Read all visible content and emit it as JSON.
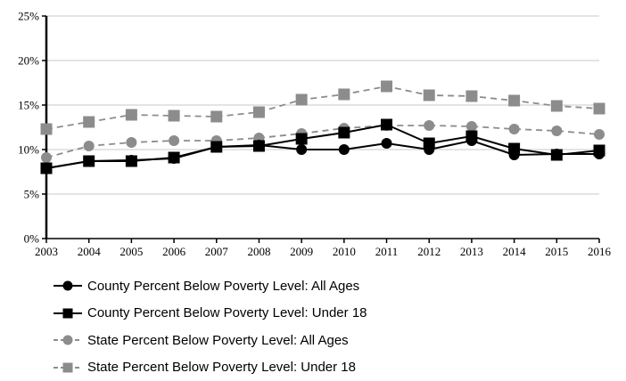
{
  "chart_data": {
    "type": "line",
    "x": [
      "2003",
      "2004",
      "2005",
      "2006",
      "2007",
      "2008",
      "2009",
      "2010",
      "2011",
      "2012",
      "2013",
      "2014",
      "2015",
      "2016"
    ],
    "ylim": [
      0,
      25
    ],
    "yticks": [
      "0%",
      "5%",
      "10%",
      "15%",
      "20%",
      "25%"
    ],
    "grid": true,
    "legend_position": "bottom",
    "series": [
      {
        "name": "County Percent Below Poverty Level: All Ages",
        "color": "#000000",
        "marker": "circle",
        "dash": "solid",
        "values": [
          7.9,
          8.7,
          8.8,
          9.0,
          10.3,
          10.5,
          10.0,
          10.0,
          10.7,
          10.0,
          11.0,
          9.4,
          9.5,
          9.5
        ]
      },
      {
        "name": "County Percent Below Poverty Level: Under 18",
        "color": "#000000",
        "marker": "square",
        "dash": "solid",
        "values": [
          7.9,
          8.7,
          8.7,
          9.1,
          10.3,
          10.4,
          11.2,
          11.9,
          12.8,
          10.7,
          11.5,
          10.1,
          9.4,
          9.9
        ]
      },
      {
        "name": "State Percent Below Poverty Level: All Ages",
        "color": "#8c8c8c",
        "marker": "circle",
        "dash": "dashed",
        "values": [
          9.1,
          10.4,
          10.8,
          11.0,
          11.0,
          11.3,
          11.8,
          12.4,
          12.7,
          12.7,
          12.6,
          12.3,
          12.1,
          11.7
        ]
      },
      {
        "name": "State Percent Below Poverty Level: Under 18",
        "color": "#8c8c8c",
        "marker": "square",
        "dash": "dashed",
        "values": [
          12.3,
          13.1,
          13.9,
          13.8,
          13.7,
          14.2,
          15.6,
          16.2,
          17.1,
          16.1,
          16.0,
          15.5,
          14.9,
          14.6
        ]
      }
    ]
  }
}
